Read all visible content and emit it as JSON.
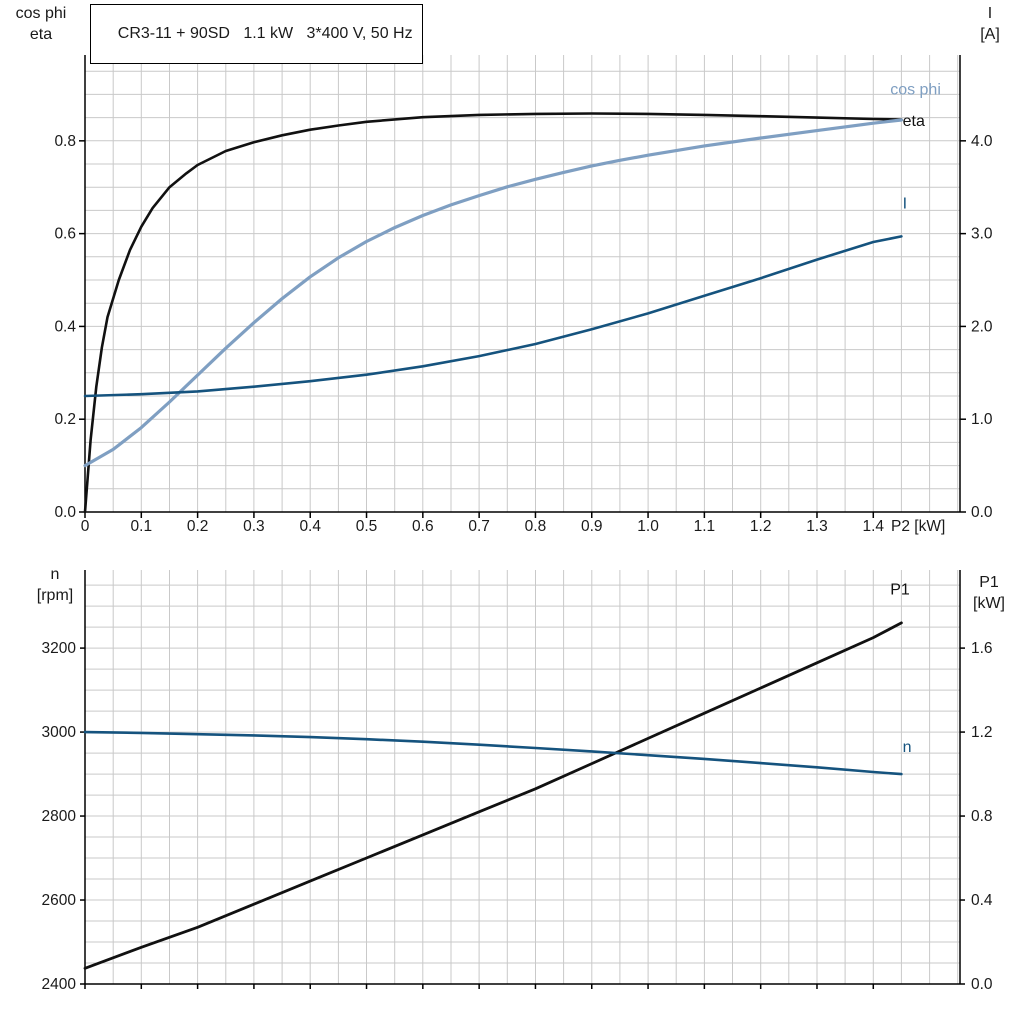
{
  "title_box": {
    "text": "CR3-11 + 90SD   1.1 kW   3*400 V, 50 Hz"
  },
  "colors": {
    "black_curve": "#111111",
    "light_blue": "#7f9fc2",
    "dark_blue": "#15537e",
    "grid": "#c9c9c9",
    "axis": "#000000",
    "text": "#1a1a1a"
  },
  "chart_data": [
    {
      "type": "line",
      "title": "CR3-11 + 90SD 1.1 kW 3*400 V, 50 Hz",
      "grid": true,
      "x_axis": {
        "label": "P2 [kW]",
        "range": [
          0,
          1.554
        ],
        "minor_step": 0.05,
        "tick_values": [
          0,
          0.1,
          0.2,
          0.3,
          0.4,
          0.5,
          0.6,
          0.7,
          0.8,
          0.9,
          1.0,
          1.1,
          1.2,
          1.3,
          1.4
        ],
        "tick_labels": [
          "0",
          "0.1",
          "0.2",
          "0.3",
          "0.4",
          "0.5",
          "0.6",
          "0.7",
          "0.8",
          "0.9",
          "1.0",
          "1.1",
          "1.2",
          "1.3",
          "1.4"
        ]
      },
      "y_left": {
        "title_lines": [
          "cos phi",
          "eta"
        ],
        "range": [
          0,
          0.985
        ],
        "minor_step": 0.05,
        "tick_values": [
          0,
          0.2,
          0.4,
          0.6,
          0.8
        ],
        "tick_labels": [
          "0.0",
          "0.2",
          "0.4",
          "0.6",
          "0.8"
        ]
      },
      "y_right": {
        "title_lines": [
          "I",
          "[A]"
        ],
        "range": [
          0,
          4.925
        ],
        "tick_values": [
          0,
          1,
          2,
          3,
          4
        ],
        "tick_labels": [
          "0.0",
          "1.0",
          "2.0",
          "3.0",
          "4.0"
        ]
      },
      "series": [
        {
          "name": "eta",
          "label": "eta",
          "axis": "left",
          "color_key": "black_curve",
          "width": 2.6,
          "label_at": [
            1.452,
            0.832
          ],
          "x": [
            0,
            0.01,
            0.02,
            0.03,
            0.04,
            0.06,
            0.08,
            0.1,
            0.12,
            0.15,
            0.18,
            0.2,
            0.25,
            0.3,
            0.35,
            0.4,
            0.45,
            0.5,
            0.6,
            0.7,
            0.8,
            0.9,
            1.0,
            1.1,
            1.2,
            1.3,
            1.4,
            1.45
          ],
          "y": [
            0,
            0.155,
            0.27,
            0.355,
            0.42,
            0.5,
            0.565,
            0.615,
            0.655,
            0.7,
            0.73,
            0.748,
            0.778,
            0.797,
            0.812,
            0.824,
            0.833,
            0.841,
            0.851,
            0.856,
            0.858,
            0.859,
            0.858,
            0.856,
            0.853,
            0.85,
            0.847,
            0.846
          ]
        },
        {
          "name": "cos phi",
          "label": "cos phi",
          "axis": "left",
          "color_key": "light_blue",
          "width": 3.2,
          "label_at": [
            1.43,
            0.9
          ],
          "x": [
            0,
            0.05,
            0.1,
            0.15,
            0.2,
            0.25,
            0.3,
            0.35,
            0.4,
            0.45,
            0.5,
            0.55,
            0.6,
            0.65,
            0.7,
            0.75,
            0.8,
            0.85,
            0.9,
            0.95,
            1.0,
            1.1,
            1.2,
            1.3,
            1.4,
            1.45
          ],
          "y": [
            0.1,
            0.135,
            0.182,
            0.237,
            0.295,
            0.353,
            0.408,
            0.46,
            0.507,
            0.548,
            0.583,
            0.613,
            0.639,
            0.662,
            0.682,
            0.701,
            0.717,
            0.732,
            0.746,
            0.758,
            0.769,
            0.789,
            0.806,
            0.822,
            0.838,
            0.845
          ]
        },
        {
          "name": "I",
          "label": "I",
          "axis": "right",
          "color_key": "dark_blue",
          "width": 2.6,
          "label_at": [
            1.452,
            3.27
          ],
          "x": [
            0,
            0.1,
            0.2,
            0.3,
            0.4,
            0.5,
            0.6,
            0.7,
            0.8,
            0.9,
            1.0,
            1.1,
            1.2,
            1.3,
            1.4,
            1.45
          ],
          "y": [
            1.25,
            1.27,
            1.3,
            1.35,
            1.41,
            1.48,
            1.57,
            1.68,
            1.81,
            1.97,
            2.14,
            2.33,
            2.52,
            2.72,
            2.91,
            2.97
          ]
        }
      ]
    },
    {
      "type": "line",
      "title": "",
      "grid": true,
      "x_axis": {
        "label": "",
        "range": [
          0,
          1.554
        ],
        "minor_step": 0.05,
        "tick_values": [
          0,
          0.1,
          0.2,
          0.3,
          0.4,
          0.5,
          0.6,
          0.7,
          0.8,
          0.9,
          1.0,
          1.1,
          1.2,
          1.3,
          1.4
        ],
        "tick_labels": []
      },
      "y_left": {
        "title_lines": [
          "n",
          "[rpm]"
        ],
        "range": [
          2400,
          3386
        ],
        "minor_step": 50,
        "tick_values": [
          2400,
          2600,
          2800,
          3000,
          3200
        ],
        "tick_labels": [
          "2400",
          "2600",
          "2800",
          "3000",
          "3200"
        ]
      },
      "y_right": {
        "title_lines": [
          "P1",
          "[kW]"
        ],
        "range": [
          0,
          1.972
        ],
        "tick_values": [
          0,
          0.4,
          0.8,
          1.2,
          1.6
        ],
        "tick_labels": [
          "0.0",
          "0.4",
          "0.8",
          "1.2",
          "1.6"
        ]
      },
      "series": [
        {
          "name": "P1",
          "label": "P1",
          "axis": "right",
          "color_key": "black_curve",
          "width": 2.8,
          "label_at": [
            1.43,
            1.855
          ],
          "x": [
            0,
            0.1,
            0.2,
            0.3,
            0.4,
            0.5,
            0.6,
            0.7,
            0.8,
            0.9,
            1.0,
            1.1,
            1.2,
            1.3,
            1.4,
            1.45
          ],
          "y": [
            0.075,
            0.175,
            0.27,
            0.38,
            0.49,
            0.6,
            0.71,
            0.82,
            0.93,
            1.05,
            1.17,
            1.29,
            1.41,
            1.53,
            1.65,
            1.72
          ]
        },
        {
          "name": "n",
          "label": "n",
          "axis": "left",
          "color_key": "dark_blue",
          "width": 2.6,
          "label_at": [
            1.452,
            2952
          ],
          "x": [
            0,
            0.1,
            0.2,
            0.3,
            0.4,
            0.5,
            0.6,
            0.7,
            0.8,
            0.9,
            1.0,
            1.1,
            1.2,
            1.3,
            1.4,
            1.45
          ],
          "y": [
            3000,
            2998,
            2995,
            2992,
            2988,
            2983,
            2977,
            2970,
            2962,
            2954,
            2945,
            2936,
            2926,
            2916,
            2905,
            2900
          ]
        }
      ]
    }
  ]
}
